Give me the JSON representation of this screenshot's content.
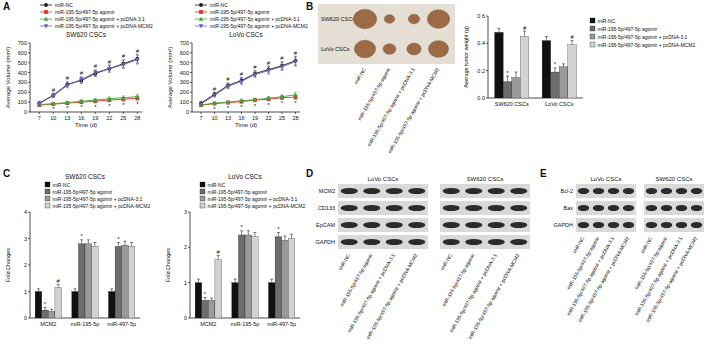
{
  "panel_labels": [
    "A",
    "B",
    "C",
    "D",
    "E"
  ],
  "chart_data": [
    {
      "type": "line",
      "title": "SW620 CSCs",
      "x_label": "Time (d)",
      "y_label": "Average Volume (mm³)",
      "x": [
        7,
        10,
        13,
        16,
        19,
        22,
        25,
        28
      ],
      "xlim": [
        5,
        29
      ],
      "xticks": [
        7,
        10,
        13,
        16,
        19,
        22,
        25,
        28
      ],
      "ylim": [
        0,
        700
      ],
      "yticks": [
        0,
        100,
        200,
        300,
        400,
        500,
        600,
        700
      ],
      "grid": false,
      "legend": "top",
      "series": [
        {
          "name": "miR-NC",
          "color": "#1c1c1c",
          "marker": "circle",
          "values": [
            90,
            170,
            280,
            320,
            390,
            440,
            490,
            540
          ],
          "error": [
            12,
            20,
            25,
            30,
            30,
            35,
            40,
            45
          ]
        },
        {
          "name": "miR-195-5p/497-5p agomir",
          "color": "#e53127",
          "marker": "square",
          "values": [
            70,
            80,
            90,
            100,
            110,
            120,
            130,
            140
          ],
          "error": [
            10,
            10,
            12,
            12,
            15,
            15,
            18,
            20
          ],
          "significance": [
            null,
            "*",
            "*",
            "*",
            "*",
            "*",
            "*",
            "*"
          ]
        },
        {
          "name": "miR-195-5p/497-5p agomir + pcDNA-3.1",
          "color": "#3ca63a",
          "marker": "triangle",
          "values": [
            75,
            85,
            95,
            110,
            120,
            135,
            145,
            155
          ],
          "error": [
            10,
            12,
            12,
            15,
            15,
            18,
            18,
            22
          ]
        },
        {
          "name": "miR-195-5p/497-5p agomir + pcDNA-MCM2",
          "color": "#6a5fb8",
          "marker": "triangle-down",
          "values": [
            85,
            165,
            270,
            330,
            400,
            440,
            480,
            530
          ],
          "error": [
            12,
            20,
            25,
            30,
            30,
            35,
            40,
            45
          ],
          "significance": [
            null,
            "#",
            "#",
            "#",
            "#",
            "#",
            "#",
            "#"
          ]
        }
      ]
    },
    {
      "type": "line",
      "title": "LoVo CSCs",
      "x_label": "Time (d)",
      "y_label": "Average Volume (mm³)",
      "x": [
        7,
        10,
        13,
        16,
        19,
        22,
        25,
        28
      ],
      "xlim": [
        5,
        29
      ],
      "xticks": [
        7,
        10,
        13,
        16,
        19,
        22,
        25,
        28
      ],
      "ylim": [
        0,
        700
      ],
      "yticks": [
        0,
        100,
        200,
        300,
        400,
        500,
        600,
        700
      ],
      "grid": false,
      "legend": "top",
      "series": [
        {
          "name": "miR-NC",
          "color": "#1c1c1c",
          "marker": "circle",
          "values": [
            90,
            180,
            270,
            320,
            390,
            430,
            470,
            520
          ],
          "error": [
            12,
            20,
            25,
            30,
            30,
            35,
            40,
            45
          ]
        },
        {
          "name": "miR-195-5p/497-5p agomir",
          "color": "#e53127",
          "marker": "square",
          "values": [
            70,
            85,
            95,
            105,
            120,
            130,
            145,
            150
          ],
          "error": [
            10,
            10,
            12,
            12,
            15,
            15,
            18,
            20
          ],
          "significance": [
            null,
            "*",
            "*",
            "*",
            "*",
            "*",
            "*",
            "*"
          ]
        },
        {
          "name": "miR-195-5p/497-5p agomir + pcDNA-3.1",
          "color": "#3ca63a",
          "marker": "triangle",
          "values": [
            70,
            90,
            100,
            115,
            125,
            140,
            155,
            175
          ],
          "error": [
            10,
            12,
            12,
            15,
            15,
            18,
            20,
            25
          ]
        },
        {
          "name": "miR-195-5p/497-5p agomir + pcDNA-MCM2",
          "color": "#6a5fb8",
          "marker": "triangle-down",
          "values": [
            80,
            170,
            260,
            310,
            380,
            420,
            460,
            510
          ],
          "error": [
            12,
            20,
            25,
            30,
            30,
            35,
            40,
            45
          ],
          "significance": [
            null,
            "#",
            "#",
            "#",
            "#",
            "#",
            "#",
            "#"
          ]
        }
      ]
    },
    {
      "type": "bar",
      "y_label": "Average tumor weight (g)",
      "categories": [
        "SW620 CSCs",
        "LoVo CSCs"
      ],
      "ylim": [
        0,
        0.6
      ],
      "yticks": [
        {
          "value": 0,
          "label": "0.0"
        },
        0.2,
        0.4,
        0.6
      ],
      "grid": false,
      "legend": "top-right",
      "series": [
        {
          "name": "miR-NC",
          "color": "#111111",
          "values": [
            0.48,
            0.42
          ],
          "error": [
            0.03,
            0.03
          ]
        },
        {
          "name": "miR-195-5p/497-5p agomir",
          "color": "#6d6d6d",
          "values": [
            0.12,
            0.19
          ],
          "error": [
            0.04,
            0.03
          ],
          "significance": [
            "*",
            "*"
          ]
        },
        {
          "name": "miR-195-5p/497-5p agomir + pcDNA-3.1",
          "color": "#9a9a9a",
          "values": [
            0.15,
            0.23
          ],
          "error": [
            0.04,
            0.02
          ]
        },
        {
          "name": "miR-195-5p/497-5p agomir + pcDNA-MCM2",
          "color": "#d2d2d2",
          "values": [
            0.45,
            0.39
          ],
          "error": [
            0.04,
            0.03
          ],
          "significance": [
            "#",
            "#"
          ]
        }
      ]
    },
    {
      "type": "bar",
      "title": "SW620 CSCs",
      "y_label": "Fold Changes",
      "categories": [
        "MCM2",
        "miR-195-5p",
        "miR-497-5p"
      ],
      "ylim": [
        0,
        4
      ],
      "yticks": [
        0,
        1,
        2,
        3,
        4
      ],
      "grid": false,
      "legend": "top-left",
      "series": [
        {
          "name": "miR-NC",
          "color": "#111111",
          "values": [
            1.0,
            1.0,
            1.0
          ],
          "error": [
            0.1,
            0.1,
            0.1
          ]
        },
        {
          "name": "miR-195-5p/497-5p agomir",
          "color": "#6d6d6d",
          "values": [
            0.3,
            2.8,
            2.7
          ],
          "error": [
            0.1,
            0.15,
            0.15
          ],
          "significance": [
            "*",
            "*",
            "*"
          ]
        },
        {
          "name": "miR-195-5p/497-5p agomir + pcDNA-3.1",
          "color": "#9a9a9a",
          "values": [
            0.25,
            2.8,
            2.75
          ],
          "error": [
            0.08,
            0.15,
            0.15
          ]
        },
        {
          "name": "miR-195-5p/497-5p agomir + pcDNA-MCM2",
          "color": "#d2d2d2",
          "values": [
            1.15,
            2.7,
            2.7
          ],
          "error": [
            0.12,
            0.15,
            0.15
          ],
          "significance": [
            "#",
            null,
            null
          ]
        }
      ]
    },
    {
      "type": "bar",
      "title": "LoVo CSCs",
      "y_label": "Fold Changes",
      "categories": [
        "MCM2",
        "miR-195-5p",
        "miR-497-5p"
      ],
      "ylim": [
        0,
        3
      ],
      "yticks": [
        0,
        1,
        2,
        3
      ],
      "grid": false,
      "legend": "top-left",
      "series": [
        {
          "name": "miR-NC",
          "color": "#111111",
          "values": [
            1.0,
            1.0,
            1.0
          ],
          "error": [
            0.1,
            0.1,
            0.1
          ]
        },
        {
          "name": "miR-195-5p/497-5p agomir",
          "color": "#6d6d6d",
          "values": [
            0.5,
            2.35,
            2.3
          ],
          "error": [
            0.08,
            0.12,
            0.12
          ],
          "significance": [
            "*",
            "*",
            "*"
          ]
        },
        {
          "name": "miR-195-5p/497-5p agomir + pcDNA-3.1",
          "color": "#9a9a9a",
          "values": [
            0.5,
            2.35,
            2.2
          ],
          "error": [
            0.06,
            0.12,
            0.12
          ]
        },
        {
          "name": "miR-195-5p/497-5p agomir + pcDNA-MCM2",
          "color": "#d2d2d2",
          "values": [
            1.65,
            2.3,
            2.25
          ],
          "error": [
            0.12,
            0.12,
            0.12
          ],
          "significance": [
            "#",
            null,
            null
          ]
        }
      ]
    }
  ],
  "photo": {
    "rows": [
      "SW620 CSCs",
      "LoVo CSCs"
    ],
    "lanes": [
      "miR-NC",
      "miR-195-5p/497-5p agomir",
      "miR-195-5p/497-5p agomir + pcDNA-3.1",
      "miR-195-5p/497-5p agomir + pcDNA-MCM2"
    ]
  },
  "blot_panels": [
    {
      "rows": [
        "MCM2",
        "CD133",
        "EpCAM",
        "GAPDH"
      ],
      "blots": [
        {
          "title": "LoVo CSCs",
          "lanes": [
            "miR-NC",
            "miR-195-5p/497-5p agomir",
            "miR-195-5p/497-5p agomir + pcDNA-3.1",
            "miR-195-5p/497-5p agomir + pcDNA-MCM2"
          ]
        },
        {
          "title": "SW620 CSCs",
          "lanes": [
            "miR-NC",
            "miR-195-5p/497-5p agomir",
            "miR-195-5p/497-5p agomir + pcDNA-3.1",
            "miR-195-5p/497-5p agomir + pcDNA-MCM2"
          ]
        }
      ]
    },
    {
      "rows": [
        "Bcl-2",
        "Bax",
        "GAPDH"
      ],
      "blots": [
        {
          "title": "LoVo CSCs",
          "lanes": [
            "miR-NC",
            "miR-195-5p/497-5p agomir",
            "miR-195-5p/497-5p agomir + pcDNA-3.1",
            "miR-195-5p/497-5p agomir + pcDNA-MCM2"
          ]
        },
        {
          "title": "SW620 CSCs",
          "lanes": [
            "miR-NC",
            "miR-195-5p/497-5p agomir",
            "miR-195-5p/497-5p agomir + pcDNA-3.1",
            "miR-195-5p/497-5p agomir + pcDNA-MCM2"
          ]
        }
      ]
    }
  ]
}
